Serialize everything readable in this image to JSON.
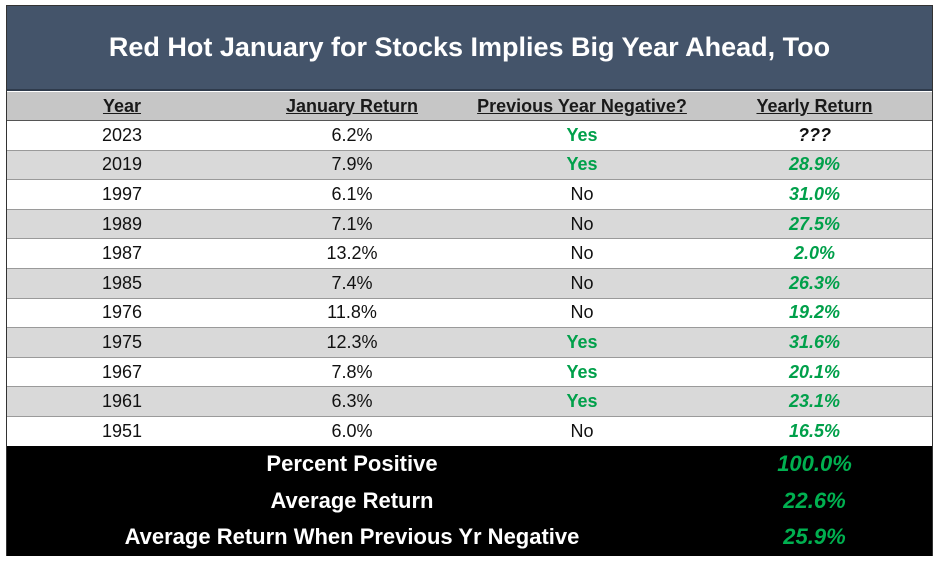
{
  "title": "Red Hot January for Stocks Implies Big Year Ahead, Too",
  "columns": [
    "Year",
    "January Return",
    "Previous Year Negative?",
    "Yearly Return"
  ],
  "rows": [
    {
      "year": "2023",
      "january_return": "6.2%",
      "prev_negative": "Yes",
      "yearly_return": "???"
    },
    {
      "year": "2019",
      "january_return": "7.9%",
      "prev_negative": "Yes",
      "yearly_return": "28.9%"
    },
    {
      "year": "1997",
      "january_return": "6.1%",
      "prev_negative": "No",
      "yearly_return": "31.0%"
    },
    {
      "year": "1989",
      "january_return": "7.1%",
      "prev_negative": "No",
      "yearly_return": "27.5%"
    },
    {
      "year": "1987",
      "january_return": "13.2%",
      "prev_negative": "No",
      "yearly_return": "2.0%"
    },
    {
      "year": "1985",
      "january_return": "7.4%",
      "prev_negative": "No",
      "yearly_return": "26.3%"
    },
    {
      "year": "1976",
      "january_return": "11.8%",
      "prev_negative": "No",
      "yearly_return": "19.2%"
    },
    {
      "year": "1975",
      "january_return": "12.3%",
      "prev_negative": "Yes",
      "yearly_return": "31.6%"
    },
    {
      "year": "1967",
      "january_return": "7.8%",
      "prev_negative": "Yes",
      "yearly_return": "20.1%"
    },
    {
      "year": "1961",
      "january_return": "6.3%",
      "prev_negative": "Yes",
      "yearly_return": "23.1%"
    },
    {
      "year": "1951",
      "january_return": "6.0%",
      "prev_negative": "No",
      "yearly_return": "16.5%"
    }
  ],
  "summary": [
    {
      "label": "Percent Positive",
      "value": "100.0%"
    },
    {
      "label": "Average Return",
      "value": "22.6%"
    },
    {
      "label": "Average Return When Previous Yr Negative",
      "value": "25.9%"
    }
  ],
  "colors": {
    "title_bg": "#44546a",
    "header_bg": "#c6c6c6",
    "shade_bg": "#d9d9d9",
    "positive": "#00a04a",
    "summary_bg": "#000000"
  }
}
